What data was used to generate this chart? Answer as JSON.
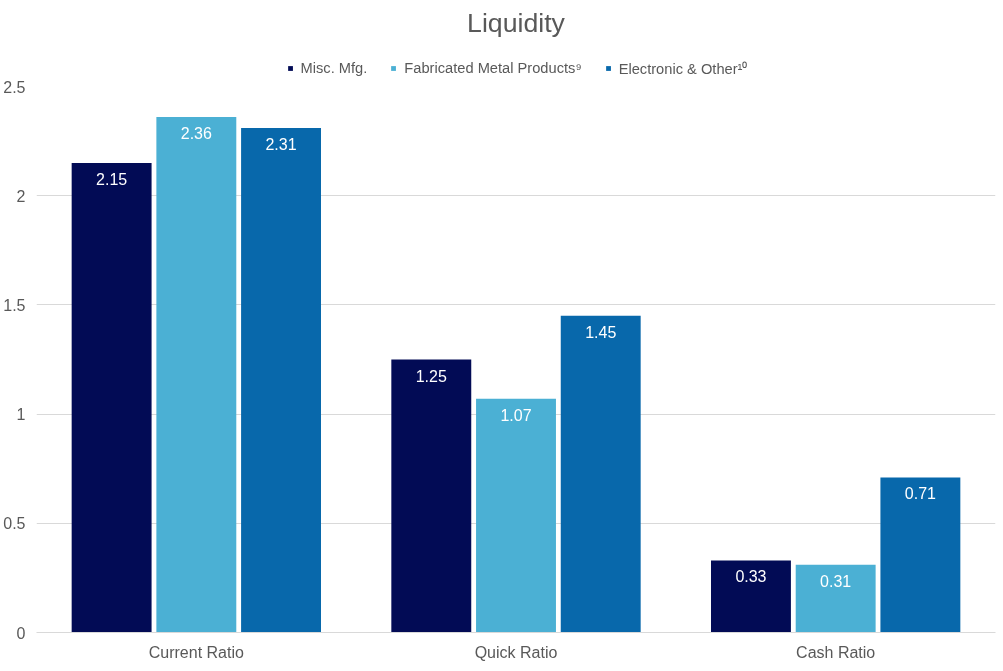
{
  "chart_data": {
    "type": "bar",
    "title": "Liquidity",
    "categories": [
      "Current Ratio",
      "Quick Ratio",
      "Cash Ratio"
    ],
    "series": [
      {
        "name": "Misc. Mfg.",
        "color": "#020b55",
        "values": [
          2.15,
          1.25,
          0.33
        ]
      },
      {
        "name": "Fabricated Metal Products⁹",
        "color": "#4bb0d4",
        "values": [
          2.36,
          1.07,
          0.31
        ]
      },
      {
        "name": "Electronic & Other¹⁰",
        "color": "#0868ab",
        "values": [
          2.31,
          1.45,
          0.71
        ]
      }
    ],
    "ylim": [
      0,
      2.5
    ],
    "yticks": [
      0,
      0.5,
      1,
      1.5,
      2,
      2.5
    ],
    "grid": "y",
    "legend": "top",
    "data_labels": true
  }
}
